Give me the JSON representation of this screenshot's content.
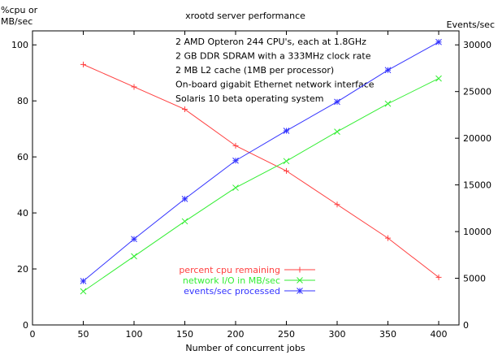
{
  "chart_data": {
    "type": "line",
    "title": "xrootd server performance",
    "xlabel": "Number of concurrent jobs",
    "ylabel_left": "%cpu or\nMB/sec",
    "ylabel_right": "Events/sec",
    "x": [
      50,
      100,
      150,
      200,
      250,
      300,
      350,
      400
    ],
    "xlim": [
      0,
      420
    ],
    "xticks": [
      "0",
      "50",
      "100",
      "150",
      "200",
      "250",
      "300",
      "350",
      "400"
    ],
    "ylim_left": [
      0,
      105
    ],
    "yticks_left": [
      "0",
      "20",
      "40",
      "60",
      "80",
      "100"
    ],
    "ylim_right": [
      0,
      31500
    ],
    "yticks_right": [
      "0",
      "5000",
      "10000",
      "15000",
      "20000",
      "25000",
      "30000"
    ],
    "annotations": [
      "2 AMD Opteron 244 CPU's, each at 1.8GHz",
      "2 GB DDR SDRAM with a 333MHz clock rate",
      "2 MB L2 cache (1MB per processor)",
      "On-board gigabit Ethernet network interface",
      "Solaris 10 beta operating system"
    ],
    "legend_position": "bottom-center",
    "series": [
      {
        "name": "percent cpu remaining",
        "axis": "left",
        "color": "#ff4040",
        "values": [
          93,
          85,
          77,
          64,
          55,
          43,
          31,
          17
        ]
      },
      {
        "name": "network I/O in MB/sec",
        "axis": "left",
        "color": "#33ee33",
        "values": [
          12,
          24.5,
          37,
          49,
          58.5,
          69,
          79,
          88
        ]
      },
      {
        "name": "events/sec processed",
        "axis": "right",
        "color": "#3333ff",
        "values": [
          4700,
          9200,
          13500,
          17600,
          20800,
          23900,
          27300,
          30300
        ]
      }
    ]
  }
}
